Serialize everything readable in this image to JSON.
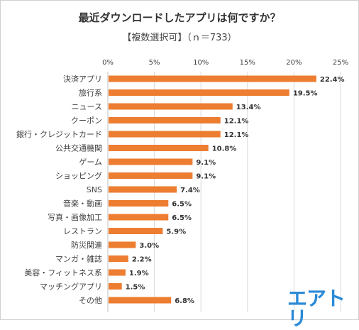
{
  "title": "最近ダウンロードしたアプリは何ですか？",
  "subtitle": "【複数選択可】（ｎ＝733）",
  "brand": "エアトリ",
  "colors": {
    "bar": "#ed7d31",
    "grid": "#d9d9d9",
    "text": "#404040"
  },
  "chart_data": {
    "type": "bar",
    "orientation": "horizontal",
    "categories": [
      "決済アプリ",
      "旅行系",
      "ニュース",
      "クーポン",
      "銀行・クレジットカード",
      "公共交通機関",
      "ゲーム",
      "ショッピング",
      "SNS",
      "音楽・動画",
      "写真・画像加工",
      "レストラン",
      "防災関連",
      "マンガ・雑誌",
      "美容・フィットネス系",
      "マッチングアプリ",
      "その他"
    ],
    "values": [
      22.4,
      19.5,
      13.4,
      12.1,
      12.1,
      10.8,
      9.1,
      9.1,
      7.4,
      6.5,
      6.5,
      5.9,
      3.0,
      2.2,
      1.9,
      1.5,
      6.8
    ],
    "value_labels": [
      "22.4%",
      "19.5%",
      "13.4%",
      "12.1%",
      "12.1%",
      "10.8%",
      "9.1%",
      "9.1%",
      "7.4%",
      "6.5%",
      "6.5%",
      "5.9%",
      "3.0%",
      "2.2%",
      "1.9%",
      "1.5%",
      "6.8%"
    ],
    "xlim": [
      0,
      25
    ],
    "xticks": [
      0,
      5,
      10,
      15,
      20,
      25
    ],
    "xtick_labels": [
      "0%",
      "5%",
      "10%",
      "15%",
      "20%",
      "25%"
    ],
    "axis_position": "top",
    "grid": true,
    "legend": false
  }
}
